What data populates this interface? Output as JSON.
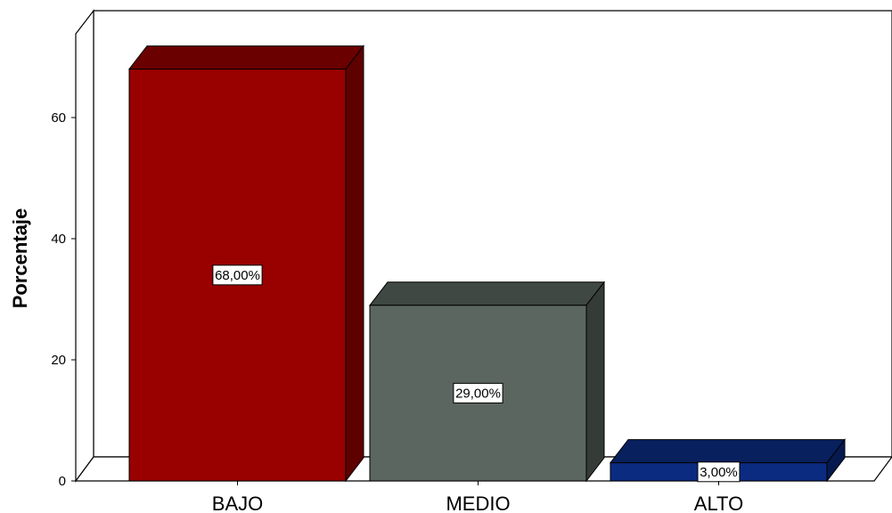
{
  "chart_data": {
    "type": "bar",
    "title": "",
    "xlabel": "",
    "ylabel": "Porcentaje",
    "categories": [
      "BAJO",
      "MEDIO",
      "ALTO"
    ],
    "values": [
      68,
      29,
      3
    ],
    "data_labels": [
      "68,00%",
      "29,00%",
      "3,00%"
    ],
    "yticks": [
      0,
      20,
      40,
      60
    ],
    "ylim": [
      0,
      70
    ],
    "grid": false,
    "legend": "none",
    "style": "3d",
    "colors": {
      "front": [
        "#990000",
        "#5b6660",
        "#0b2b80"
      ],
      "top": [
        "#6b0000",
        "#3f4843",
        "#08205e"
      ],
      "side": [
        "#5e0000",
        "#353c38",
        "#061a4f"
      ]
    }
  }
}
